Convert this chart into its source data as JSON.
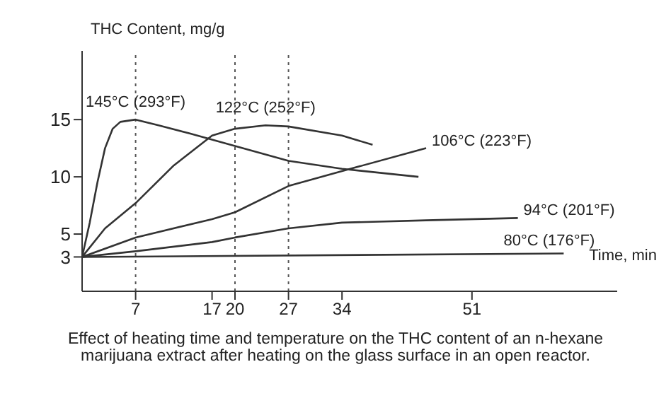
{
  "chart_data": {
    "type": "line",
    "xlabel": "Time, min",
    "ylabel": "THC Content, mg/g",
    "annotations": [
      "Effect of heating time and temperature on the THC content of an n-hexane marijuana extract after heating on the glass surface in an open reactor."
    ],
    "xlim": [
      0,
      70
    ],
    "xticks": [
      7,
      17,
      20,
      27,
      34,
      51
    ],
    "ylim": [
      0,
      21
    ],
    "yticks": [
      3,
      5,
      10,
      15
    ],
    "grid": false,
    "legend": false,
    "marker": "none",
    "line_style": "solid",
    "ref_lines": [
      {
        "axis": "x",
        "value": 7,
        "line_style": "dotted",
        "color": "#555555"
      },
      {
        "axis": "x",
        "value": 20,
        "line_style": "dotted",
        "color": "#555555"
      },
      {
        "axis": "x",
        "value": 27,
        "line_style": "dotted",
        "color": "#555555"
      }
    ],
    "series": [
      {
        "name": "145°C (293°F)",
        "color": "#333333",
        "x": [
          0,
          1,
          2,
          3,
          4,
          5,
          7,
          10,
          14,
          20,
          27,
          34,
          44
        ],
        "values": [
          3,
          6,
          9.5,
          12.5,
          14.2,
          14.8,
          15,
          14.5,
          13.8,
          12.7,
          11.4,
          10.7,
          10
        ]
      },
      {
        "name": "122°C (252°F)",
        "color": "#333333",
        "x": [
          0,
          3,
          7,
          12,
          17,
          20,
          24,
          27,
          34,
          38
        ],
        "values": [
          3,
          5.5,
          7.7,
          11,
          13.6,
          14.2,
          14.5,
          14.4,
          13.6,
          12.8
        ]
      },
      {
        "name": "106°C (223°F)",
        "color": "#333333",
        "x": [
          0,
          7,
          17,
          20,
          27,
          34,
          45
        ],
        "values": [
          3,
          4.7,
          6.3,
          6.9,
          9.2,
          10.5,
          12.5
        ]
      },
      {
        "name": "94°C (201°F)",
        "color": "#333333",
        "x": [
          0,
          7,
          17,
          20,
          27,
          34,
          45,
          57
        ],
        "values": [
          3,
          3.5,
          4.3,
          4.7,
          5.5,
          6,
          6.2,
          6.4
        ]
      },
      {
        "name": "80°C (176°F)",
        "color": "#333333",
        "x": [
          0,
          63
        ],
        "values": [
          3,
          3.3
        ]
      }
    ]
  }
}
